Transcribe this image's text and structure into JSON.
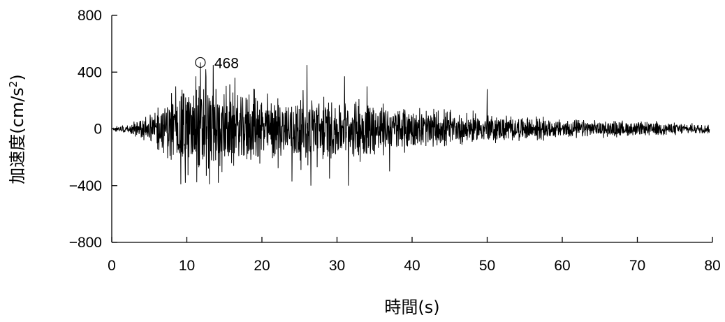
{
  "chart_data": {
    "type": "line",
    "title": "",
    "xlabel": "時間(s)",
    "ylabel_main": "加速度(cm/s",
    "ylabel_sup": "2",
    "ylabel_close": ")",
    "xlim": [
      0,
      80
    ],
    "ylim": [
      -800,
      800
    ],
    "x_ticks": [
      0,
      10,
      20,
      30,
      40,
      50,
      60,
      70,
      80
    ],
    "x_tick_labels": [
      "0",
      "10",
      "20",
      "30",
      "40",
      "50",
      "60",
      "70",
      "80"
    ],
    "y_ticks": [
      800,
      400,
      0,
      -400,
      -800
    ],
    "y_tick_labels": [
      "800",
      "400",
      "0",
      "−400",
      "−800"
    ],
    "grid": false,
    "legend": "none",
    "line_color": "#000000",
    "annotation": {
      "x": 11.8,
      "y": 468,
      "label": "468"
    },
    "series": [
      {
        "envelope": [
          [
            0,
            15
          ],
          [
            1,
            30
          ],
          [
            2,
            45
          ],
          [
            3,
            60
          ],
          [
            4,
            90
          ],
          [
            5,
            120
          ],
          [
            6,
            160
          ],
          [
            7,
            220
          ],
          [
            8,
            280
          ],
          [
            9,
            330
          ],
          [
            10,
            360
          ],
          [
            11,
            380
          ],
          [
            12,
            400
          ],
          [
            13,
            390
          ],
          [
            14,
            360
          ],
          [
            15,
            340
          ],
          [
            16,
            320
          ],
          [
            18,
            300
          ],
          [
            20,
            290
          ],
          [
            22,
            280
          ],
          [
            24,
            280
          ],
          [
            26,
            300
          ],
          [
            28,
            280
          ],
          [
            30,
            270
          ],
          [
            32,
            260
          ],
          [
            35,
            230
          ],
          [
            38,
            210
          ],
          [
            40,
            190
          ],
          [
            42,
            170
          ],
          [
            45,
            150
          ],
          [
            48,
            130
          ],
          [
            50,
            120
          ],
          [
            55,
            100
          ],
          [
            60,
            80
          ],
          [
            65,
            70
          ],
          [
            70,
            60
          ],
          [
            75,
            50
          ],
          [
            80,
            40
          ]
        ],
        "peaks": [
          [
            8.5,
            300
          ],
          [
            9.2,
            -390
          ],
          [
            9.8,
            -380
          ],
          [
            11.2,
            370
          ],
          [
            11.8,
            468
          ],
          [
            12.5,
            420
          ],
          [
            13.0,
            -390
          ],
          [
            13.5,
            450
          ],
          [
            14.2,
            -380
          ],
          [
            16.4,
            360
          ],
          [
            19.0,
            280
          ],
          [
            24.0,
            -370
          ],
          [
            26.0,
            450
          ],
          [
            26.5,
            -400
          ],
          [
            29.0,
            -350
          ],
          [
            31.0,
            370
          ],
          [
            31.5,
            -400
          ],
          [
            34.0,
            300
          ],
          [
            37.0,
            -300
          ],
          [
            50.0,
            280
          ]
        ]
      }
    ]
  }
}
